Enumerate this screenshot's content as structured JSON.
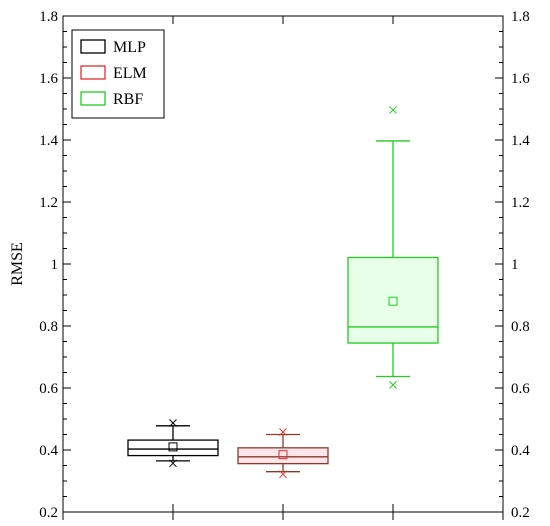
{
  "chart_data": {
    "type": "box",
    "title": "",
    "xlabel": "",
    "ylabel": "RMSE",
    "ylim": [
      0.2,
      1.8
    ],
    "yticks": [
      0.2,
      0.4,
      0.6,
      0.8,
      1,
      1.2,
      1.4,
      1.6,
      1.8
    ],
    "ytick_labels": [
      "0.2",
      "0.4",
      "0.6",
      "0.8",
      "1",
      "1.2",
      "1.4",
      "1.6",
      "1.8"
    ],
    "minor_tick_step": 0.05,
    "right_axis_mirrored": true,
    "grid": false,
    "legend_position": "top-left",
    "series": [
      {
        "name": "MLP",
        "color": "#000000",
        "fill": "#ffffff",
        "whisker_low": 0.365,
        "q1": 0.382,
        "median": 0.403,
        "q3": 0.432,
        "whisker_high": 0.478,
        "mean": 0.41,
        "outlier_min": 0.357,
        "outlier_max": 0.487
      },
      {
        "name": "ELM",
        "color": "#e03030",
        "fill": "#ffe4ea",
        "line_color": "#8b3a2a",
        "whisker_low": 0.33,
        "q1": 0.356,
        "median": 0.378,
        "q3": 0.407,
        "whisker_high": 0.45,
        "mean": 0.385,
        "outlier_min": 0.322,
        "outlier_max": 0.458
      },
      {
        "name": "RBF",
        "color": "#22cc22",
        "fill": "#e8ffe8",
        "whisker_low": 0.637,
        "q1": 0.745,
        "median": 0.797,
        "q3": 1.021,
        "whisker_high": 1.397,
        "mean": 0.88,
        "outlier_min": 0.61,
        "outlier_max": 1.497
      }
    ]
  }
}
